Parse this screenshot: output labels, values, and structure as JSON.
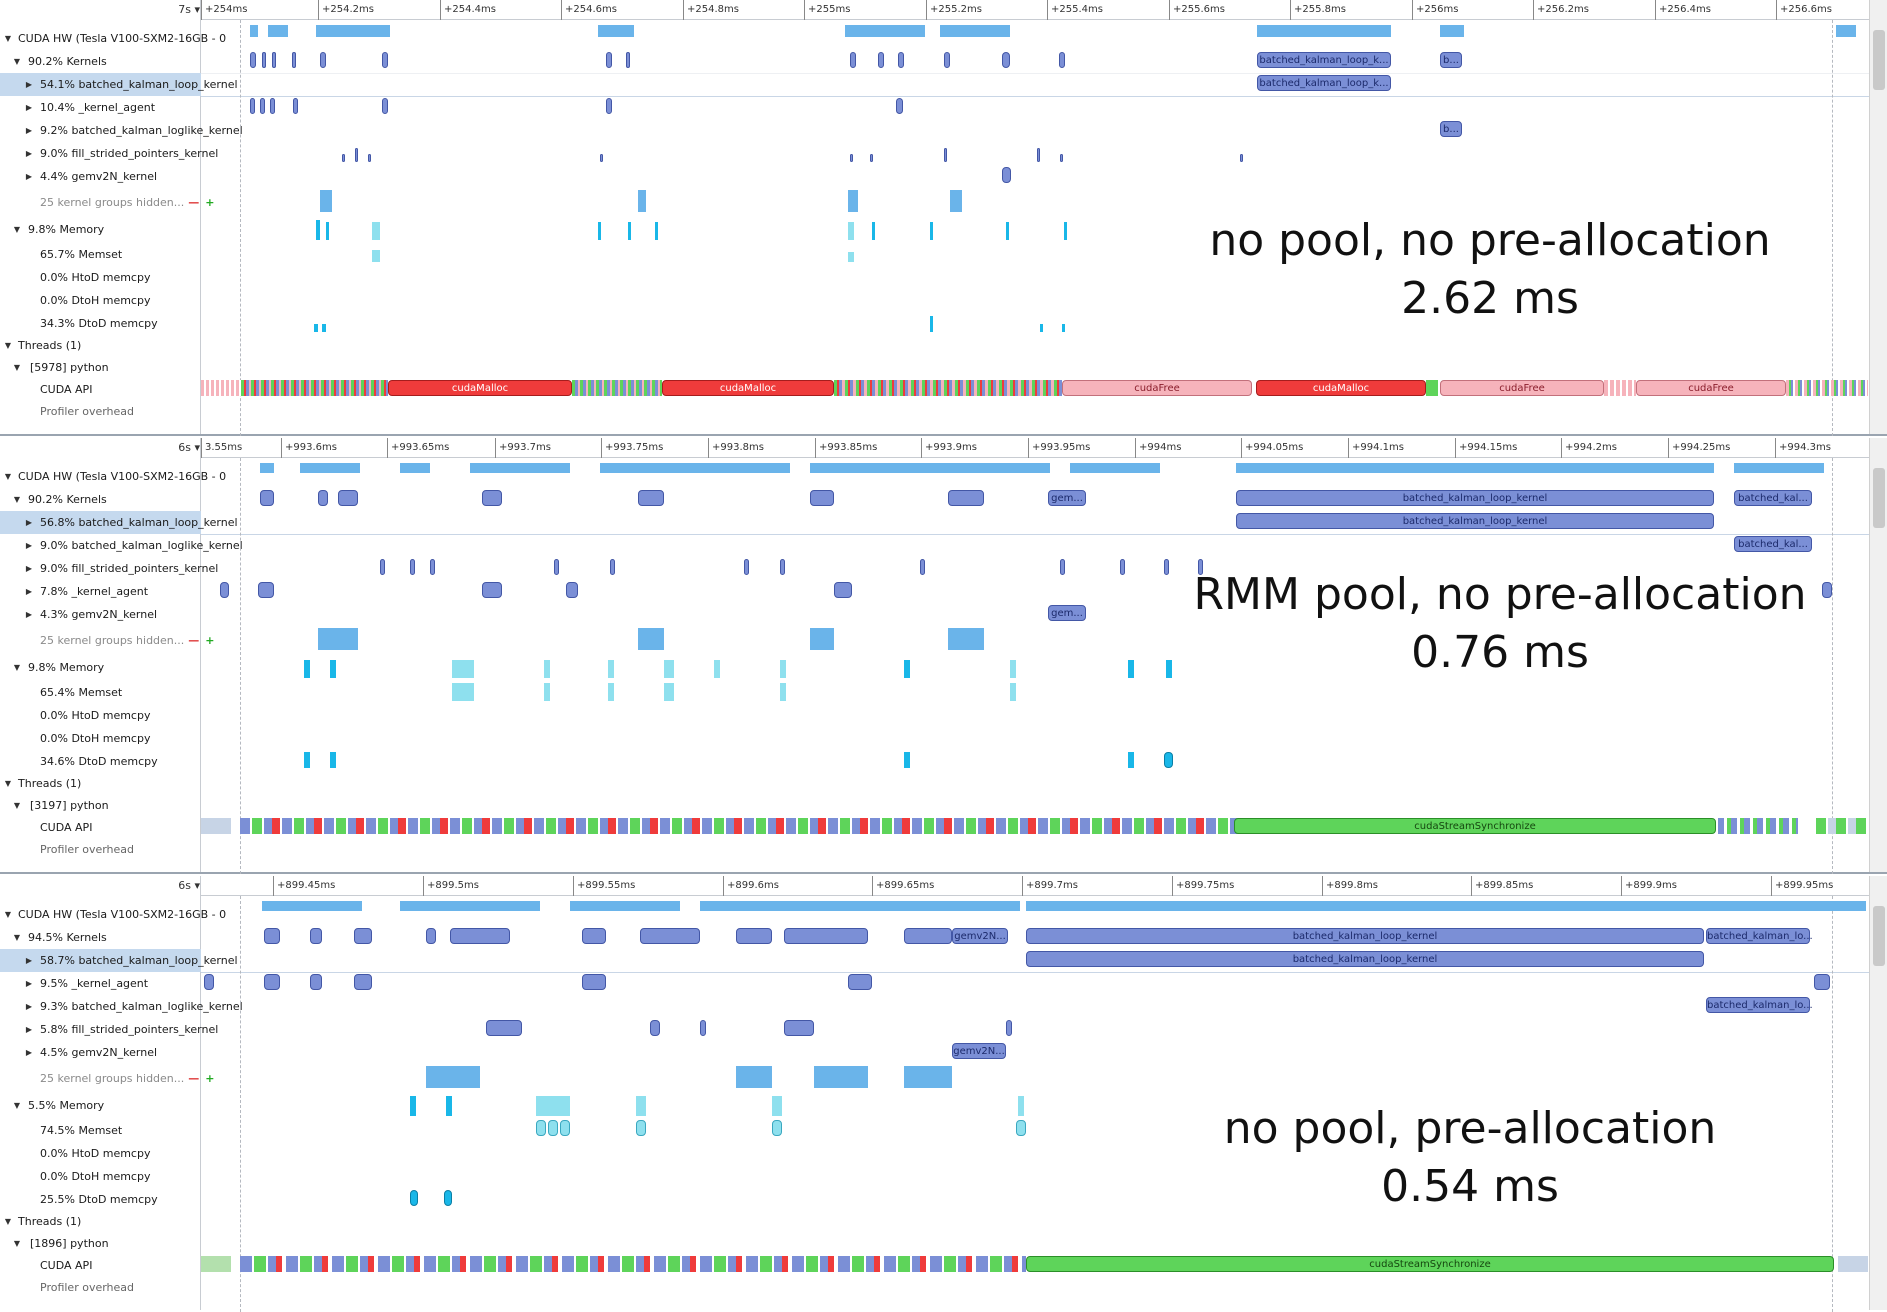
{
  "panels": [
    {
      "zoom": "7s",
      "ticks": [
        "+254ms",
        "+254.2ms",
        "+254.4ms",
        "+254.6ms",
        "+254.8ms",
        "+255ms",
        "+255.2ms",
        "+255.4ms",
        "+255.6ms",
        "+255.8ms",
        "+256ms",
        "+256.2ms",
        "+256.4ms",
        "+256.6ms"
      ],
      "rows": {
        "cuda_hw": "CUDA HW (Tesla V100-SXM2-16GB - 0",
        "kernels": "90.2% Kernels",
        "k1": "54.1% batched_kalman_loop_kernel",
        "k2": "10.4% _kernel_agent",
        "k3": "9.2% batched_kalman_loglike_kernel",
        "k4": "9.0% fill_strided_pointers_kernel",
        "k5": "4.4% gemv2N_kernel",
        "hidden": "25 kernel groups hidden...",
        "memory": "9.8% Memory",
        "memset": "65.7% Memset",
        "htod": "0.0% HtoD memcpy",
        "dtoh": "0.0% DtoH memcpy",
        "dtod": "34.3% DtoD memcpy",
        "threads": "Threads (1)",
        "python": "[5978] python",
        "cuda_api": "CUDA API",
        "profiler": "Profiler overhead"
      },
      "labels": {
        "kernel_row_a": "batched_kalman_loop_k...",
        "kernel_row_b": "b...",
        "loop_row": "batched_kalman_loop_k...",
        "loglike_row": "b...",
        "api1": "cudaMalloc",
        "api2": "cudaMalloc",
        "api3": "cudaFree",
        "api4": "cudaMalloc",
        "api5": "cudaFree",
        "api6": "cudaFree"
      },
      "overlay_title": "no pool, no pre-allocation",
      "overlay_time": "2.62 ms"
    },
    {
      "zoom": "6s",
      "ticks": [
        "3.55ms",
        "+993.6ms",
        "+993.65ms",
        "+993.7ms",
        "+993.75ms",
        "+993.8ms",
        "+993.85ms",
        "+993.9ms",
        "+993.95ms",
        "+994ms",
        "+994.05ms",
        "+994.1ms",
        "+994.15ms",
        "+994.2ms",
        "+994.25ms",
        "+994.3ms"
      ],
      "rows": {
        "cuda_hw": "CUDA HW (Tesla V100-SXM2-16GB - 0",
        "kernels": "90.2% Kernels",
        "k1": "56.8% batched_kalman_loop_kernel",
        "k2": "9.0% batched_kalman_loglike_kernel",
        "k3": "9.0% fill_strided_pointers_kernel",
        "k4": "7.8% _kernel_agent",
        "k5": "4.3% gemv2N_kernel",
        "hidden": "25 kernel groups hidden...",
        "memory": "9.8% Memory",
        "memset": "65.4% Memset",
        "htod": "0.0% HtoD memcpy",
        "dtoh": "0.0% DtoH memcpy",
        "dtod": "34.6% DtoD memcpy",
        "threads": "Threads (1)",
        "python": "[3197] python",
        "cuda_api": "CUDA API",
        "profiler": "Profiler overhead"
      },
      "labels": {
        "big_kernel": "batched_kalman_loop_kernel",
        "big_kernel_b": "batched_kal...",
        "loop_row": "batched_kalman_loop_kernel",
        "loglike_row": "batched_kal...",
        "gem": "gem...",
        "sync": "cudaStreamSynchronize"
      },
      "overlay_title": "RMM pool, no pre-allocation",
      "overlay_time": "0.76 ms"
    },
    {
      "zoom": "6s",
      "ticks": [
        "+899.45ms",
        "+899.5ms",
        "+899.55ms",
        "+899.6ms",
        "+899.65ms",
        "+899.7ms",
        "+899.75ms",
        "+899.8ms",
        "+899.85ms",
        "+899.9ms",
        "+899.95ms"
      ],
      "rows": {
        "cuda_hw": "CUDA HW (Tesla V100-SXM2-16GB - 0",
        "kernels": "94.5% Kernels",
        "k1": "58.7% batched_kalman_loop_kernel",
        "k2": "9.5% _kernel_agent",
        "k3": "9.3% batched_kalman_loglike_kernel",
        "k4": "5.8% fill_strided_pointers_kernel",
        "k5": "4.5% gemv2N_kernel",
        "hidden": "25 kernel groups hidden...",
        "memory": "5.5% Memory",
        "memset": "74.5% Memset",
        "htod": "0.0% HtoD memcpy",
        "dtoh": "0.0% DtoH memcpy",
        "dtod": "25.5% DtoD memcpy",
        "threads": "Threads (1)",
        "python": "[1896] python",
        "cuda_api": "CUDA API",
        "profiler": "Profiler overhead"
      },
      "labels": {
        "big_kernel": "batched_kalman_loop_kernel",
        "big_kernel_b": "batched_kalman_lo...",
        "loop_row": "batched_kalman_loop_kernel",
        "loglike_row": "batched_kalman_lo...",
        "gem": "gemv2N...",
        "gem_row": "gemv2N...",
        "sync": "cudaStreamSynchronize"
      },
      "overlay_title": "no pool, pre-allocation",
      "overlay_time": "0.54 ms"
    }
  ],
  "colors": {
    "kernel": "#7b8fd6",
    "memset": "#19b7e8",
    "cuda_malloc": "#ef3b3b",
    "cuda_free": "#f6b3bb",
    "stream_sync": "#5ed45a"
  }
}
